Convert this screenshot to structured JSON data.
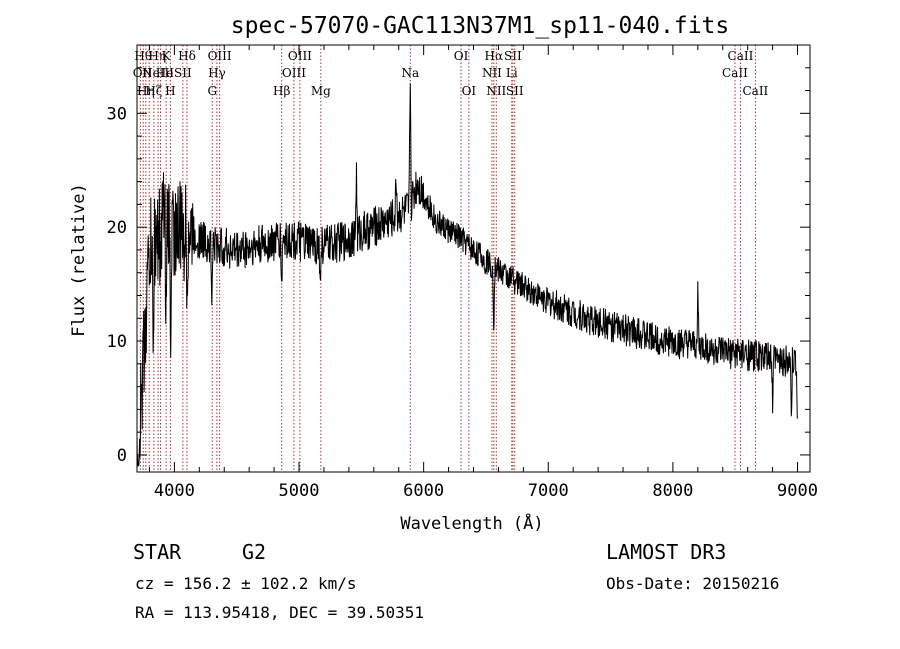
{
  "chart_data": {
    "type": "line",
    "title": "spec-57070-GAC113N37M1_sp11-040.fits",
    "xlabel": "Wavelength (Å)",
    "ylabel": "Flux (relative)",
    "xlim": [
      3700,
      9100
    ],
    "ylim": [
      -1.5,
      36
    ],
    "xticks": [
      4000,
      5000,
      6000,
      7000,
      8000,
      9000
    ],
    "xtick_labels": [
      "4000",
      "5000",
      "6000",
      "7000",
      "8000",
      "9000"
    ],
    "xminor_step": 200,
    "yticks": [
      0,
      10,
      20,
      30
    ],
    "ytick_labels": [
      "0",
      "10",
      "20",
      "30"
    ],
    "yminor_step": 2,
    "line_color": "#000000",
    "marker_color": "#b03030",
    "spectrum_trend": {
      "x": [
        3700,
        3720,
        3760,
        3800,
        3900,
        4000,
        4100,
        4200,
        4300,
        4500,
        4700,
        4900,
        5100,
        5300,
        5500,
        5700,
        5880,
        5950,
        6100,
        6300,
        6500,
        6700,
        7000,
        7300,
        7600,
        8000,
        8400,
        8800,
        9000
      ],
      "y": [
        0.5,
        2,
        10,
        18,
        20.5,
        20,
        19.5,
        19,
        18.5,
        18,
        18.5,
        19,
        18.5,
        18.5,
        19.5,
        20.5,
        21.5,
        24,
        20.5,
        19,
        17,
        15.5,
        13.5,
        12,
        11,
        9.8,
        9,
        8.5,
        8
      ],
      "noise": [
        {
          "x0": 3700,
          "x1": 4150,
          "amp": 4.5
        },
        {
          "x0": 4150,
          "x1": 6000,
          "amp": 1.8
        },
        {
          "x0": 6000,
          "x1": 7000,
          "amp": 1.2
        },
        {
          "x0": 7000,
          "x1": 9100,
          "amp": 1.4
        }
      ],
      "features": [
        {
          "x": 3830,
          "depth": -12
        },
        {
          "x": 3890,
          "depth": -6
        },
        {
          "x": 3934,
          "depth": -9
        },
        {
          "x": 3970,
          "depth": -10
        },
        {
          "x": 4101,
          "depth": -4
        },
        {
          "x": 4300,
          "depth": -5
        },
        {
          "x": 4861,
          "depth": -4
        },
        {
          "x": 5170,
          "depth": -4
        },
        {
          "x": 5460,
          "depth": 6
        },
        {
          "x": 5780,
          "depth": 4
        },
        {
          "x": 5892,
          "depth": 12
        },
        {
          "x": 6563,
          "depth": -5
        },
        {
          "x": 8200,
          "depth": 5
        },
        {
          "x": 8800,
          "depth": -4
        },
        {
          "x": 8950,
          "depth": -5
        },
        {
          "x": 9000,
          "depth": -7
        }
      ]
    },
    "line_markers": [
      {
        "x": 3727,
        "row": 1,
        "label": "OII",
        "dx": 2
      },
      {
        "x": 3750,
        "row": 0,
        "label": "Hθ",
        "dx": 0
      },
      {
        "x": 3771,
        "row": 2,
        "label": "Hη",
        "dx": 0
      },
      {
        "x": 3798,
        "row": 0,
        "label": "Hη",
        "dx": 8
      },
      {
        "x": 3835,
        "row": 2,
        "label": "Hζ",
        "dx": 0
      },
      {
        "x": 3869,
        "row": 1,
        "label": "NeIII",
        "dx": 0
      },
      {
        "x": 3889,
        "row": 1,
        "label": "He",
        "dx": 4
      },
      {
        "x": 3934,
        "row": 0,
        "label": "K",
        "dx": 0
      },
      {
        "x": 3968,
        "row": 2,
        "label": "H",
        "dx": 0
      },
      {
        "x": 4068,
        "row": 1,
        "label": "SII",
        "dx": 0
      },
      {
        "x": 4101,
        "row": 0,
        "label": "Hδ",
        "dx": 0
      },
      {
        "x": 4304,
        "row": 2,
        "label": "G",
        "dx": 0
      },
      {
        "x": 4341,
        "row": 1,
        "label": "Hγ",
        "dx": 0
      },
      {
        "x": 4363,
        "row": 0,
        "label": "OIII",
        "dx": 0
      },
      {
        "x": 4861,
        "row": 2,
        "label": "Hβ",
        "dx": 0
      },
      {
        "x": 4959,
        "row": 1,
        "label": "OIII",
        "dx": 0
      },
      {
        "x": 5007,
        "row": 0,
        "label": "OIII",
        "dx": 0
      },
      {
        "x": 5175,
        "row": 2,
        "label": "Mg",
        "dx": 0
      },
      {
        "x": 5893,
        "row": 1,
        "label": "Na",
        "dx": 0
      },
      {
        "x": 6300,
        "row": 0,
        "label": "OI",
        "dx": 0
      },
      {
        "x": 6363,
        "row": 2,
        "label": "OI",
        "dx": 0
      },
      {
        "x": 6548,
        "row": 1,
        "label": "NII",
        "dx": 0
      },
      {
        "x": 6563,
        "row": 0,
        "label": "Hα",
        "dx": 0
      },
      {
        "x": 6583,
        "row": 2,
        "label": "NII",
        "dx": 0
      },
      {
        "x": 6707,
        "row": 1,
        "label": "Li",
        "dx": 0
      },
      {
        "x": 6716,
        "row": 0,
        "label": "SII",
        "dx": 0
      },
      {
        "x": 6731,
        "row": 2,
        "label": "SII",
        "dx": 0
      },
      {
        "x": 8498,
        "row": 1,
        "label": "CaII",
        "dx": 0
      },
      {
        "x": 8542,
        "row": 0,
        "label": "CaII",
        "dx": 0
      },
      {
        "x": 8662,
        "row": 2,
        "label": "CaII",
        "dx": 0
      }
    ]
  },
  "info": {
    "object_class": "STAR",
    "subclass": "G2",
    "survey": "LAMOST DR3",
    "velocity": "cz = 156.2 ± 102.2 km/s",
    "obs_date": "Obs-Date: 20150216",
    "coords": "RA = 113.95418, DEC =  39.50351"
  }
}
